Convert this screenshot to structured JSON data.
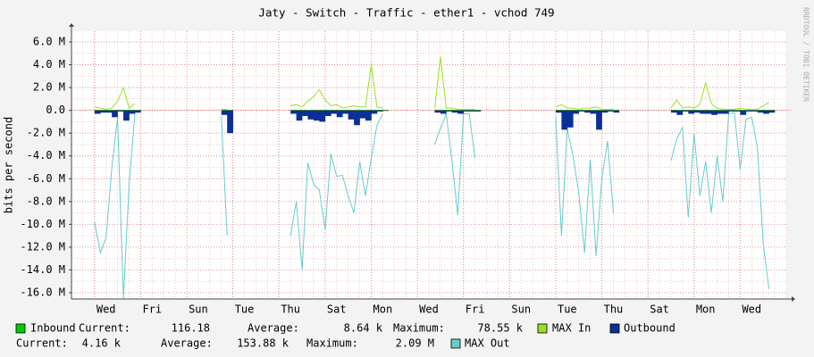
{
  "chart_data": {
    "type": "rrd",
    "title": "Jaty - Switch - Traffic - ether1 - vchod 749",
    "y_label": "bits per second",
    "watermark": "RRDTOOL / TOBI OETIKER",
    "grid": true,
    "xlim": [
      0,
      31
    ],
    "xticks": [
      {
        "value": 1.5,
        "label": "Wed"
      },
      {
        "value": 3.5,
        "label": "Fri"
      },
      {
        "value": 5.5,
        "label": "Sun"
      },
      {
        "value": 7.5,
        "label": "Tue"
      },
      {
        "value": 9.5,
        "label": "Thu"
      },
      {
        "value": 11.5,
        "label": "Sat"
      },
      {
        "value": 13.5,
        "label": "Mon"
      },
      {
        "value": 15.5,
        "label": "Wed"
      },
      {
        "value": 17.5,
        "label": "Fri"
      },
      {
        "value": 19.5,
        "label": "Sun"
      },
      {
        "value": 21.5,
        "label": "Tue"
      },
      {
        "value": 23.5,
        "label": "Thu"
      },
      {
        "value": 25.5,
        "label": "Sat"
      },
      {
        "value": 27.5,
        "label": "Mon"
      },
      {
        "value": 29.5,
        "label": "Wed"
      }
    ],
    "ylim": [
      -16.55,
      6.94
    ],
    "yticks": [
      {
        "value": 6,
        "label": "6.0 M"
      },
      {
        "value": 4,
        "label": "4.0 M"
      },
      {
        "value": 2,
        "label": "2.0 M"
      },
      {
        "value": 0,
        "label": "0.0"
      },
      {
        "value": -2,
        "label": "-2.0 M"
      },
      {
        "value": -4,
        "label": "-4.0 M"
      },
      {
        "value": -6,
        "label": "-6.0 M"
      },
      {
        "value": -8,
        "label": "-8.0 M"
      },
      {
        "value": -10,
        "label": "-10.0 M"
      },
      {
        "value": -12,
        "label": "-12.0 M"
      },
      {
        "value": -14,
        "label": "-14.0 M"
      },
      {
        "value": -16,
        "label": "-16.0 M"
      }
    ],
    "x": [
      1,
      1.25,
      1.5,
      1.75,
      2,
      2.25,
      2.5,
      2.75,
      3,
      3.25,
      3.5,
      3.75,
      4,
      4.25,
      4.5,
      4.75,
      5,
      5.25,
      5.5,
      5.75,
      6,
      6.25,
      6.5,
      6.75,
      7,
      7.25,
      7.5,
      7.75,
      8,
      8.25,
      8.5,
      8.75,
      9,
      9.25,
      9.5,
      9.75,
      10,
      10.25,
      10.5,
      10.75,
      11,
      11.25,
      11.5,
      11.75,
      12,
      12.25,
      12.5,
      12.75,
      13,
      13.25,
      13.5,
      13.75,
      14,
      14.25,
      14.5,
      14.75,
      15,
      15.25,
      15.5,
      15.75,
      16,
      16.25,
      16.5,
      16.75,
      17,
      17.25,
      17.5,
      17.75,
      18,
      18.25,
      18.5,
      18.75,
      19,
      19.25,
      19.5,
      19.75,
      20,
      20.25,
      20.5,
      20.75,
      21,
      21.25,
      21.5,
      21.75,
      22,
      22.25,
      22.5,
      22.75,
      23,
      23.25,
      23.5,
      23.75,
      24,
      24.25,
      24.5,
      24.75,
      25,
      25.25,
      25.5,
      25.75,
      26,
      26.25,
      26.5,
      26.75,
      27,
      27.25,
      27.5,
      27.75,
      28,
      28.25,
      28.5,
      28.75,
      29,
      29.25,
      29.5,
      29.75,
      30,
      30.25
    ],
    "series": [
      {
        "name": "Inbound",
        "color": "#00cc00",
        "style": "area",
        "stats": [
          {
            "label": "Current:",
            "value": "116.18"
          },
          {
            "label": "Average:",
            "value": "8.64 k"
          },
          {
            "label": "Maximum:",
            "value": "78.55 k"
          }
        ],
        "values": [
          0.05,
          0.05,
          0.05,
          0.05,
          0.05,
          0.05,
          0.05,
          0.05,
          null,
          null,
          null,
          null,
          null,
          null,
          null,
          null,
          null,
          null,
          null,
          null,
          null,
          null,
          0.05,
          0.05,
          null,
          null,
          null,
          null,
          null,
          null,
          null,
          null,
          null,
          null,
          0.05,
          0.05,
          0.05,
          0.05,
          0.05,
          0.05,
          0.05,
          0.05,
          0.05,
          0.05,
          0.05,
          0.05,
          0.05,
          0.05,
          0.05,
          0.05,
          0.05,
          null,
          null,
          null,
          null,
          null,
          null,
          null,
          null,
          0.05,
          0.05,
          0.05,
          0.05,
          0.05,
          0.05,
          0.05,
          0.05,
          null,
          null,
          null,
          null,
          null,
          null,
          null,
          null,
          null,
          null,
          null,
          null,
          null,
          0.05,
          0.05,
          0.05,
          0.05,
          0.05,
          0.05,
          0.05,
          0.05,
          0.05,
          0.05,
          0.05,
          null,
          null,
          null,
          null,
          null,
          null,
          null,
          null,
          null,
          0.05,
          0.05,
          0.05,
          0.05,
          0.05,
          0.05,
          0.05,
          0.05,
          0.05,
          0.05,
          0.05,
          0.05,
          0.05,
          0.05,
          0.05,
          0.05,
          0.05,
          0.05
        ]
      },
      {
        "name": "MAX In",
        "color": "#99e022",
        "style": "line",
        "values": [
          0.3,
          0.2,
          0.1,
          0.2,
          0.8,
          2,
          0.2,
          0.6,
          null,
          null,
          null,
          null,
          null,
          null,
          null,
          null,
          null,
          null,
          null,
          null,
          null,
          null,
          0.1,
          0.1,
          null,
          null,
          null,
          null,
          null,
          null,
          null,
          null,
          null,
          null,
          0.4,
          0.5,
          0.3,
          0.8,
          1.2,
          1.8,
          0.9,
          0.4,
          0.5,
          0.2,
          0.3,
          0.4,
          0.3,
          0.3,
          4,
          0.3,
          0.2,
          null,
          null,
          null,
          null,
          null,
          null,
          null,
          null,
          0.2,
          4.7,
          0.2,
          0.2,
          0.1,
          0.1,
          0.1,
          0.1,
          null,
          null,
          null,
          null,
          null,
          null,
          null,
          null,
          null,
          null,
          null,
          null,
          null,
          0.3,
          0.5,
          0.2,
          0.2,
          0.1,
          0.2,
          0.2,
          0.3,
          0.1,
          0.1,
          0.1,
          null,
          null,
          null,
          null,
          null,
          null,
          null,
          null,
          null,
          0.2,
          0.9,
          0.2,
          0.3,
          0.2,
          0.5,
          2.4,
          0.6,
          0.2,
          0.1,
          0.1,
          0.1,
          0.2,
          0.1,
          0.1,
          0.1,
          0.4,
          0.7
        ]
      },
      {
        "name": "Outbound",
        "color": "#0a2f96",
        "style": "area",
        "stats": [
          {
            "label": "Current:",
            "value": "4.16 k"
          },
          {
            "label": "Average:",
            "value": "153.88 k"
          },
          {
            "label": "Maximum:",
            "value": "2.09 M"
          }
        ],
        "values": [
          -0.3,
          -0.2,
          -0.2,
          -0.6,
          -0.1,
          -0.9,
          -0.3,
          -0.2,
          null,
          null,
          null,
          null,
          null,
          null,
          null,
          null,
          null,
          null,
          null,
          null,
          null,
          null,
          -0.4,
          -2,
          null,
          null,
          null,
          null,
          null,
          null,
          null,
          null,
          null,
          null,
          -0.3,
          -0.9,
          -0.5,
          -0.8,
          -0.9,
          -1,
          -0.5,
          -0.3,
          -0.6,
          -0.3,
          -0.8,
          -1.3,
          -0.7,
          -0.9,
          -0.3,
          -0.1,
          -0.05,
          null,
          null,
          null,
          null,
          null,
          null,
          null,
          null,
          -0.2,
          -0.3,
          -0.1,
          -0.2,
          -0.3,
          -0.1,
          -0.1,
          -0.1,
          null,
          null,
          null,
          null,
          null,
          null,
          null,
          null,
          null,
          null,
          null,
          null,
          null,
          -0.2,
          -1.7,
          -1.5,
          -0.3,
          -0.1,
          -0.2,
          -0.3,
          -1.7,
          -0.2,
          -0.1,
          -0.2,
          null,
          null,
          null,
          null,
          null,
          null,
          null,
          null,
          null,
          -0.2,
          -0.4,
          -0.1,
          -0.3,
          -0.2,
          -0.3,
          -0.3,
          -0.4,
          -0.3,
          -0.3,
          -0.1,
          -0.1,
          -0.4,
          -0.1,
          -0.1,
          -0.2,
          -0.3,
          -0.2
        ]
      },
      {
        "name": "MAX Out",
        "color": "#66cccc",
        "style": "line",
        "values": [
          -9.8,
          -12.5,
          -11.2,
          -5,
          -0.6,
          -16.5,
          -6.5,
          -0.3,
          null,
          null,
          null,
          null,
          null,
          null,
          null,
          null,
          null,
          null,
          null,
          null,
          null,
          null,
          -0.5,
          -11,
          null,
          null,
          null,
          null,
          null,
          null,
          null,
          null,
          null,
          null,
          -11,
          -8,
          -14,
          -4.6,
          -6.5,
          -7,
          -10.5,
          -3.8,
          -5.8,
          -5.7,
          -7.5,
          -9,
          -4.5,
          -7.5,
          -4.2,
          -1.3,
          -0.3,
          null,
          null,
          null,
          null,
          null,
          null,
          null,
          null,
          -3,
          -1.6,
          -0.3,
          -4.4,
          -9.2,
          -0.3,
          -0.3,
          -4.2,
          null,
          null,
          null,
          null,
          null,
          null,
          null,
          null,
          null,
          null,
          null,
          null,
          null,
          -0.5,
          -11,
          -1.6,
          -4,
          -7.2,
          -12.5,
          -4.3,
          -12.8,
          -6,
          -2.7,
          -9,
          null,
          null,
          null,
          null,
          null,
          null,
          null,
          null,
          null,
          -4.4,
          -2.5,
          -1.5,
          -9.4,
          -2,
          -7.5,
          -4.5,
          -9,
          -4,
          -8,
          -0.3,
          -0.2,
          -5.2,
          -0.8,
          -0.6,
          -3.3,
          -11.7,
          -15.7
        ]
      }
    ]
  }
}
